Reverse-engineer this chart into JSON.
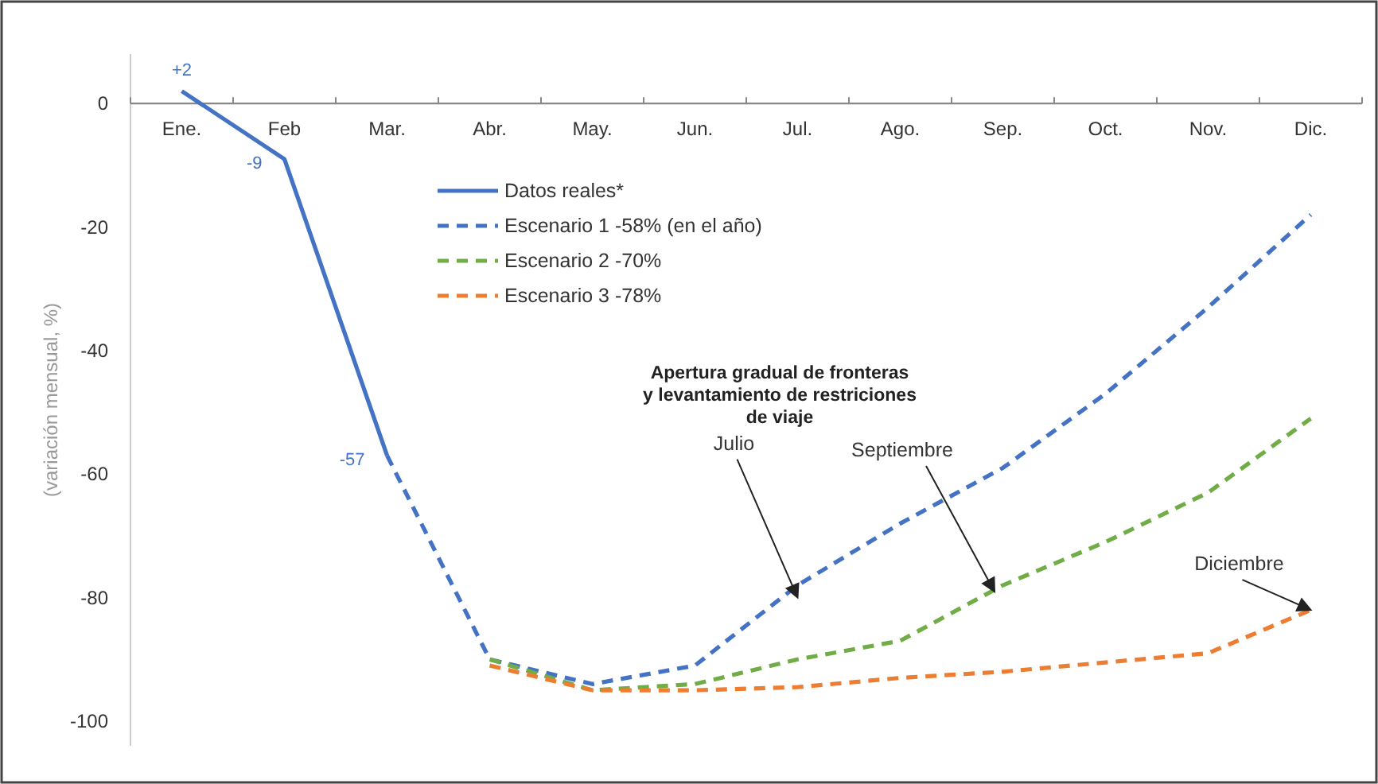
{
  "chart_data": {
    "type": "line",
    "categories": [
      "Ene.",
      "Feb",
      "Mar.",
      "Abr.",
      "May.",
      "Jun.",
      "Jul.",
      "Ago.",
      "Sep.",
      "Oct.",
      "Nov.",
      "Dic."
    ],
    "series": [
      {
        "name": "Datos reales*",
        "color": "#4472c4",
        "line_style": "solid",
        "values": [
          2,
          -9,
          -57,
          null,
          null,
          null,
          null,
          null,
          null,
          null,
          null,
          null
        ],
        "value_labels": [
          "+2",
          "-9",
          "-57",
          null,
          null,
          null,
          null,
          null,
          null,
          null,
          null,
          null
        ]
      },
      {
        "name": "Escenario 1   -58%  (en el año)",
        "color": "#4472c4",
        "line_style": "dashed",
        "values": [
          null,
          null,
          -57,
          -90,
          -94,
          -91,
          -78,
          -68,
          -59,
          -47,
          -33,
          -18
        ]
      },
      {
        "name": "Escenario 2   -70%",
        "color": "#70ad47",
        "line_style": "dashed",
        "values": [
          null,
          null,
          null,
          -90,
          -95,
          -94,
          -90,
          -87,
          -78,
          -71,
          -63,
          -51
        ]
      },
      {
        "name": "Escenario 3   -78%",
        "color": "#ed7d31",
        "line_style": "dashed",
        "values": [
          null,
          null,
          null,
          -91,
          -95,
          -95,
          -94.5,
          -93,
          -92,
          -90.5,
          -89,
          -82
        ]
      }
    ],
    "ylabel": "(variación mensual, %)",
    "ylim": [
      -104,
      8
    ],
    "yticks": [
      0,
      -20,
      -40,
      -60,
      -80,
      -100
    ],
    "legend": "top",
    "grid": false,
    "marker": "none",
    "annotations": [
      "Apertura gradual de fronteras\ny levantamiento de restriciones\nde viaje",
      {
        "text": "Julio",
        "x": "Jul.",
        "y": -80
      },
      "Septiembre",
      {
        "text": "Diciembre",
        "x": "Dic.",
        "y": -82
      }
    ]
  }
}
